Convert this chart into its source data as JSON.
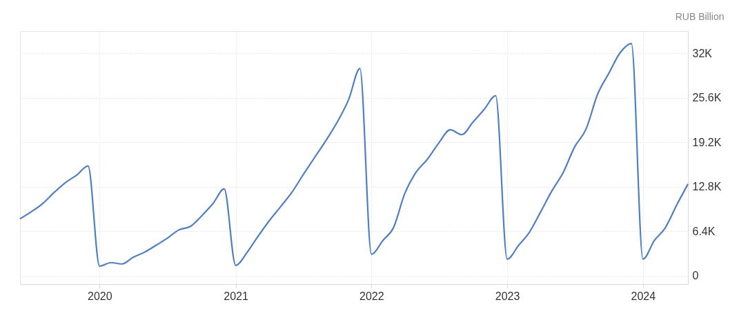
{
  "chart_data": {
    "type": "line",
    "ylabel": "RUB Billion",
    "x": [
      "2019-06-01",
      "2019-07-01",
      "2019-08-01",
      "2019-09-01",
      "2019-10-01",
      "2019-11-01",
      "2019-12-01",
      "2020-01-01",
      "2020-02-01",
      "2020-03-01",
      "2020-04-01",
      "2020-05-01",
      "2020-06-01",
      "2020-07-01",
      "2020-08-01",
      "2020-09-01",
      "2020-10-01",
      "2020-11-01",
      "2020-12-01",
      "2021-01-01",
      "2021-02-01",
      "2021-03-01",
      "2021-04-01",
      "2021-05-01",
      "2021-06-01",
      "2021-07-01",
      "2021-08-01",
      "2021-09-01",
      "2021-10-01",
      "2021-11-01",
      "2021-12-01",
      "2022-01-01",
      "2022-02-01",
      "2022-03-01",
      "2022-04-01",
      "2022-05-01",
      "2022-06-01",
      "2022-07-01",
      "2022-08-01",
      "2022-09-01",
      "2022-10-01",
      "2022-11-01",
      "2022-12-01",
      "2023-01-01",
      "2023-02-01",
      "2023-03-01",
      "2023-04-01",
      "2023-05-01",
      "2023-06-01",
      "2023-07-01",
      "2023-08-01",
      "2023-09-01",
      "2023-10-01",
      "2023-11-01",
      "2023-12-01",
      "2024-01-01",
      "2024-02-01",
      "2024-03-01",
      "2024-04-01",
      "2024-05-01"
    ],
    "series": [
      {
        "color": "#4f7fbf",
        "values": [
          8200,
          9200,
          10400,
          12000,
          13400,
          14500,
          15800,
          1400,
          1900,
          1700,
          2700,
          3400,
          4400,
          5400,
          6600,
          7100,
          8600,
          10400,
          12500,
          1500,
          3400,
          5600,
          7900,
          9900,
          12000,
          14500,
          17000,
          19500,
          22100,
          25400,
          29800,
          3100,
          5100,
          6900,
          11900,
          14900,
          16800,
          19100,
          21000,
          20300,
          22100,
          24000,
          25900,
          2400,
          4400,
          6200,
          9200,
          12200,
          14900,
          18500,
          21100,
          26100,
          29100,
          32100,
          33400,
          2400,
          5100,
          6900,
          10200,
          13200
        ]
      }
    ],
    "xlim": [
      "2019-06-01",
      "2024-05-01"
    ],
    "xticks": [
      {
        "value": "2020-01-01",
        "label": "2020"
      },
      {
        "value": "2021-01-01",
        "label": "2021"
      },
      {
        "value": "2022-01-01",
        "label": "2022"
      },
      {
        "value": "2023-01-01",
        "label": "2023"
      },
      {
        "value": "2024-01-01",
        "label": "2024"
      }
    ],
    "ylim": [
      -1200,
      35200
    ],
    "yticks": [
      0,
      {
        "value": 6400,
        "label": "6.4K"
      },
      {
        "value": 12800,
        "label": "12.8K"
      },
      {
        "value": 19200,
        "label": "19.2K"
      },
      {
        "value": 25600,
        "label": "25.6K"
      },
      {
        "value": 32000,
        "label": "32K"
      }
    ],
    "grid": true,
    "marker": "none",
    "line_style": "solid"
  }
}
